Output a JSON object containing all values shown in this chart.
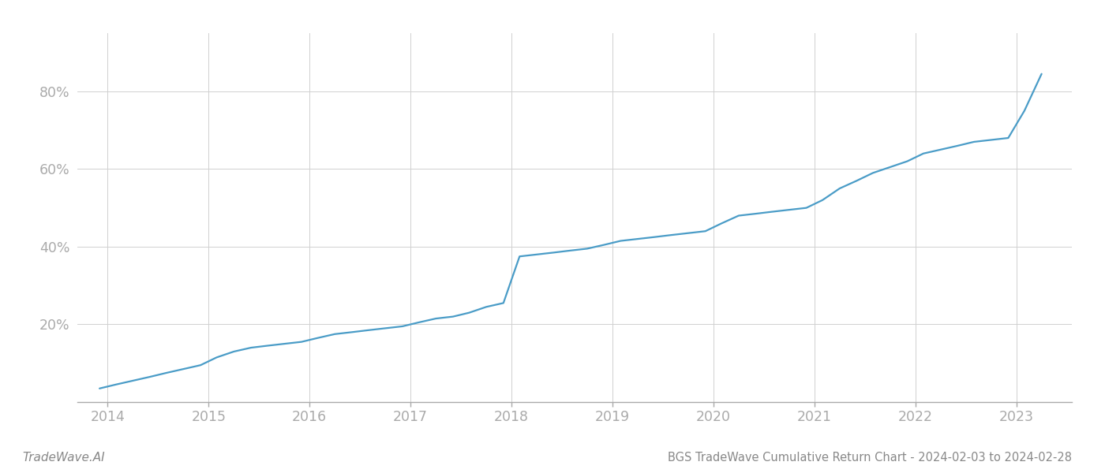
{
  "title": "BGS TradeWave Cumulative Return Chart - 2024-02-03 to 2024-02-28",
  "watermark": "TradeWave.AI",
  "line_color": "#4a9cc7",
  "background_color": "#ffffff",
  "grid_color": "#d0d0d0",
  "x_years": [
    2014,
    2015,
    2016,
    2017,
    2018,
    2019,
    2020,
    2021,
    2022,
    2023
  ],
  "x_data": [
    2013.92,
    2014.08,
    2014.25,
    2014.42,
    2014.58,
    2014.75,
    2014.92,
    2015.08,
    2015.25,
    2015.42,
    2015.58,
    2015.75,
    2015.92,
    2016.08,
    2016.25,
    2016.42,
    2016.58,
    2016.75,
    2016.92,
    2017.08,
    2017.25,
    2017.42,
    2017.58,
    2017.75,
    2017.92,
    2018.08,
    2018.25,
    2018.42,
    2018.58,
    2018.75,
    2018.92,
    2019.08,
    2019.25,
    2019.42,
    2019.58,
    2019.75,
    2019.92,
    2020.08,
    2020.25,
    2020.42,
    2020.58,
    2020.75,
    2020.92,
    2021.08,
    2021.25,
    2021.42,
    2021.58,
    2021.75,
    2021.92,
    2022.08,
    2022.25,
    2022.42,
    2022.58,
    2022.75,
    2022.92,
    2023.08,
    2023.25
  ],
  "y_data": [
    3.5,
    4.5,
    5.5,
    6.5,
    7.5,
    8.5,
    9.5,
    11.5,
    13.0,
    14.0,
    14.5,
    15.0,
    15.5,
    16.5,
    17.5,
    18.0,
    18.5,
    19.0,
    19.5,
    20.5,
    21.5,
    22.0,
    23.0,
    24.5,
    25.5,
    37.5,
    38.0,
    38.5,
    39.0,
    39.5,
    40.5,
    41.5,
    42.0,
    42.5,
    43.0,
    43.5,
    44.0,
    46.0,
    48.0,
    48.5,
    49.0,
    49.5,
    50.0,
    52.0,
    55.0,
    57.0,
    59.0,
    60.5,
    62.0,
    64.0,
    65.0,
    66.0,
    67.0,
    67.5,
    68.0,
    75.0,
    84.5
  ],
  "ytick_labels": [
    "20%",
    "40%",
    "60%",
    "80%"
  ],
  "ytick_values": [
    20,
    40,
    60,
    80
  ],
  "ylim": [
    0,
    95
  ],
  "xlim": [
    2013.7,
    2023.55
  ],
  "title_fontsize": 10.5,
  "watermark_fontsize": 11,
  "tick_fontsize": 12.5,
  "title_color": "#888888",
  "watermark_color": "#888888",
  "tick_color": "#aaaaaa",
  "spine_color": "#aaaaaa",
  "line_width": 1.6
}
